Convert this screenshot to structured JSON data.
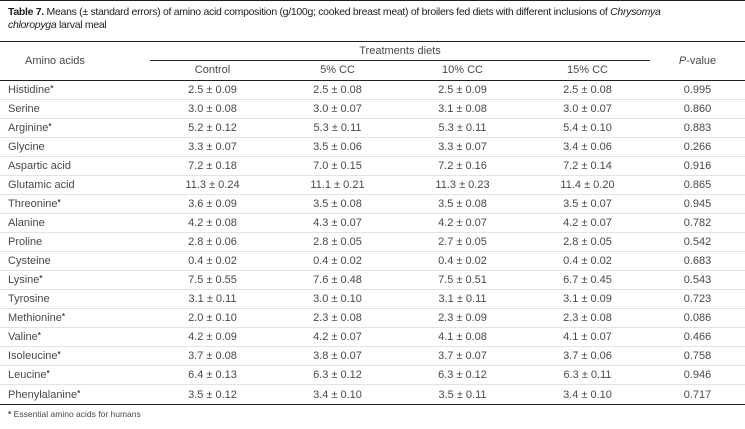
{
  "title": {
    "label_bold": "Table 7.",
    "line1": " Means (± standard errors) of amino acid composition (g/100g; cooked breast meat) of broilers fed diets with different inclusions of ",
    "line1_italic": "Chrysomya",
    "line2_italic": "chloropyga",
    "line2": " larval meal"
  },
  "table": {
    "row_header": "Amino acids",
    "col_group_header": "Treatments diets",
    "pvalue_header_italic": "P",
    "pvalue_header_rest": "-value",
    "columns": [
      "Control",
      "5% CC",
      "10% CC",
      "15% CC"
    ],
    "rows": [
      {
        "name": "Histidine",
        "essential": true,
        "values": [
          "2.5 ± 0.09",
          "2.5 ± 0.08",
          "2.5 ± 0.09",
          "2.5 ± 0.08"
        ],
        "p": "0.995"
      },
      {
        "name": "Serine",
        "essential": false,
        "values": [
          "3.0 ± 0.08",
          "3.0 ± 0.07",
          "3.1 ± 0.08",
          "3.0 ± 0.07"
        ],
        "p": "0.860"
      },
      {
        "name": "Arginine",
        "essential": true,
        "values": [
          "5.2 ± 0.12",
          "5.3 ± 0.11",
          "5.3 ± 0.11",
          "5.4 ± 0.10"
        ],
        "p": "0.883"
      },
      {
        "name": "Glycine",
        "essential": false,
        "values": [
          "3.3 ± 0.07",
          "3.5 ± 0.06",
          "3.3 ± 0.07",
          "3.4 ± 0.06"
        ],
        "p": "0.266"
      },
      {
        "name": "Aspartic acid",
        "essential": false,
        "values": [
          "7.2 ± 0.18",
          "7.0 ± 0.15",
          "7.2 ± 0.16",
          "7.2 ± 0.14"
        ],
        "p": "0.916"
      },
      {
        "name": "Glutamic acid",
        "essential": false,
        "values": [
          "11.3 ± 0.24",
          "11.1 ± 0.21",
          "11.3 ± 0.23",
          "11.4 ± 0.20"
        ],
        "p": "0.865"
      },
      {
        "name": "Threonine",
        "essential": true,
        "values": [
          "3.6 ± 0.09",
          "3.5 ± 0.08",
          "3.5 ± 0.08",
          "3.5 ± 0.07"
        ],
        "p": "0.945"
      },
      {
        "name": "Alanine",
        "essential": false,
        "values": [
          "4.2 ± 0.08",
          "4.3 ± 0.07",
          "4.2 ± 0.07",
          "4.2 ± 0.07"
        ],
        "p": "0.782"
      },
      {
        "name": "Proline",
        "essential": false,
        "values": [
          "2.8 ± 0.06",
          "2.8 ± 0.05",
          "2.7 ± 0.05",
          "2.8 ± 0.05"
        ],
        "p": "0.542"
      },
      {
        "name": "Cysteine",
        "essential": false,
        "values": [
          "0.4 ± 0.02",
          "0.4 ± 0.02",
          "0.4 ± 0.02",
          "0.4 ± 0.02"
        ],
        "p": "0.683"
      },
      {
        "name": "Lysine",
        "essential": true,
        "values": [
          "7.5 ± 0.55",
          "7.6 ± 0.48",
          "7.5 ± 0.51",
          "6.7 ± 0.45"
        ],
        "p": "0.543"
      },
      {
        "name": "Tyrosine",
        "essential": false,
        "values": [
          "3.1 ± 0.11",
          "3.0 ± 0.10",
          "3.1 ± 0.11",
          "3.1 ± 0.09"
        ],
        "p": "0.723"
      },
      {
        "name": "Methionine",
        "essential": true,
        "values": [
          "2.0 ± 0.10",
          "2.3 ± 0.08",
          "2.3 ± 0.09",
          "2.3 ± 0.08"
        ],
        "p": "0.086"
      },
      {
        "name": "Valine",
        "essential": true,
        "values": [
          "4.2 ± 0.09",
          "4.2 ± 0.07",
          "4.1 ± 0.08",
          "4.1 ± 0.07"
        ],
        "p": "0.466"
      },
      {
        "name": "Isoleucine",
        "essential": true,
        "values": [
          "3.7 ± 0.08",
          "3.8 ± 0.07",
          "3.7 ± 0.07",
          "3.7 ± 0.06"
        ],
        "p": "0.758"
      },
      {
        "name": "Leucine",
        "essential": true,
        "values": [
          "6.4 ± 0.13",
          "6.3 ± 0.12",
          "6.3 ± 0.12",
          "6.3 ± 0.11"
        ],
        "p": "0.946"
      },
      {
        "name": "Phenylalanine",
        "essential": true,
        "values": [
          "3.5 ± 0.12",
          "3.4 ± 0.10",
          "3.5 ± 0.11",
          "3.4 ± 0.10"
        ],
        "p": "0.717"
      }
    ]
  },
  "footnote": {
    "marker": "*",
    "text": " Essential amino acids for humans"
  }
}
